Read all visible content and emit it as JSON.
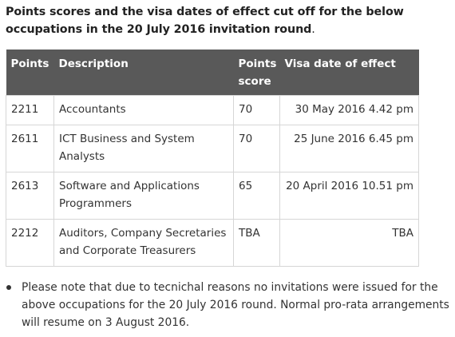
{
  "heading": {
    "text": "Points scores and the visa dates of effect cut off for the below occupations in the 20 July 2016 invitation round",
    "period": "."
  },
  "table": {
    "headers": [
      "Points",
      "Description",
      "Points score",
      "Visa date of effect"
    ],
    "rows": [
      [
        "2211",
        "Accountants",
        "70",
        "30 May 2016 4.42 pm"
      ],
      [
        "2611",
        "ICT Business and System Analysts",
        "70",
        "25 June 2016 6.45 pm"
      ],
      [
        "2613",
        "Software and Applications Programmers",
        "65",
        "20 April 2016 10.51 pm"
      ],
      [
        "2212",
        "Auditors, Company Secretaries and Corporate Treasurers",
        "TBA",
        "TBA"
      ]
    ],
    "header_bg": "#595959"
  },
  "notes": [
    "Please note that due to tecnichal reasons no invitations were issued for the above occupations for the 20 July 2016 round. Normal pro-rata arrangements will resume on 3 August 2016."
  ]
}
